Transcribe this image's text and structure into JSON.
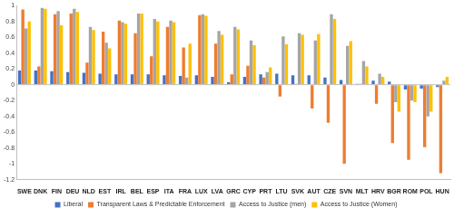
{
  "chart_data": {
    "type": "bar",
    "categories": [
      "SWE",
      "DNK",
      "FIN",
      "DEU",
      "NLD",
      "EST",
      "IRL",
      "BEL",
      "ESP",
      "ITA",
      "FRA",
      "LUX",
      "LVA",
      "GRC",
      "CYP",
      "PRT",
      "LTU",
      "SVK",
      "AUT",
      "CZE",
      "SVN",
      "MLT",
      "HRV",
      "BGR",
      "ROM",
      "POL",
      "HUN"
    ],
    "series": [
      {
        "name": "Liberal",
        "color": "#4472c4",
        "values": [
          0.18,
          0.18,
          0.17,
          0.16,
          0.15,
          0.14,
          0.13,
          0.13,
          0.13,
          0.12,
          0.11,
          0.12,
          0.1,
          0.03,
          0.1,
          0.13,
          0.14,
          0.12,
          0.12,
          0.09,
          0.06,
          0.01,
          0.05,
          0.04,
          -0.06,
          -0.05,
          -0.03
        ]
      },
      {
        "name": "Transparent Laws & Predictable Enforcement",
        "color": "#ed7d31",
        "values": [
          0.95,
          0.23,
          0.89,
          0.9,
          0.28,
          0.67,
          0.81,
          0.65,
          0.36,
          0.73,
          0.47,
          0.88,
          0.52,
          0.13,
          0.24,
          0.09,
          -0.15,
          0.01,
          -0.3,
          -0.48,
          -1.0,
          0.01,
          -0.24,
          -0.74,
          -0.95,
          -0.79,
          -1.12
        ]
      },
      {
        "name": "Access to Justice (men)",
        "color": "#a5a5a5",
        "values": [
          0.71,
          0.97,
          0.93,
          0.96,
          0.73,
          0.53,
          0.79,
          0.9,
          0.83,
          0.81,
          0.09,
          0.89,
          0.68,
          0.73,
          0.56,
          0.16,
          0.61,
          0.65,
          0.56,
          0.89,
          0.49,
          0.3,
          0.14,
          -0.22,
          -0.2,
          -0.4,
          0.05
        ]
      },
      {
        "name": "Access to Justice (Women)",
        "color": "#ffc000",
        "values": [
          0.8,
          0.96,
          0.75,
          0.92,
          0.69,
          0.46,
          0.77,
          0.9,
          0.8,
          0.79,
          0.52,
          0.87,
          0.63,
          0.7,
          0.5,
          0.22,
          0.51,
          0.63,
          0.64,
          0.83,
          0.55,
          0.23,
          0.1,
          -0.34,
          -0.22,
          -0.34,
          0.1
        ]
      }
    ],
    "ylim": [
      -1.2,
      1
    ],
    "yticks": [
      -1.2,
      -1,
      -0.8,
      -0.6,
      -0.4,
      -0.2,
      0,
      0.2,
      0.4,
      0.6,
      0.8,
      1
    ],
    "grid": false,
    "legend": "bottom"
  }
}
